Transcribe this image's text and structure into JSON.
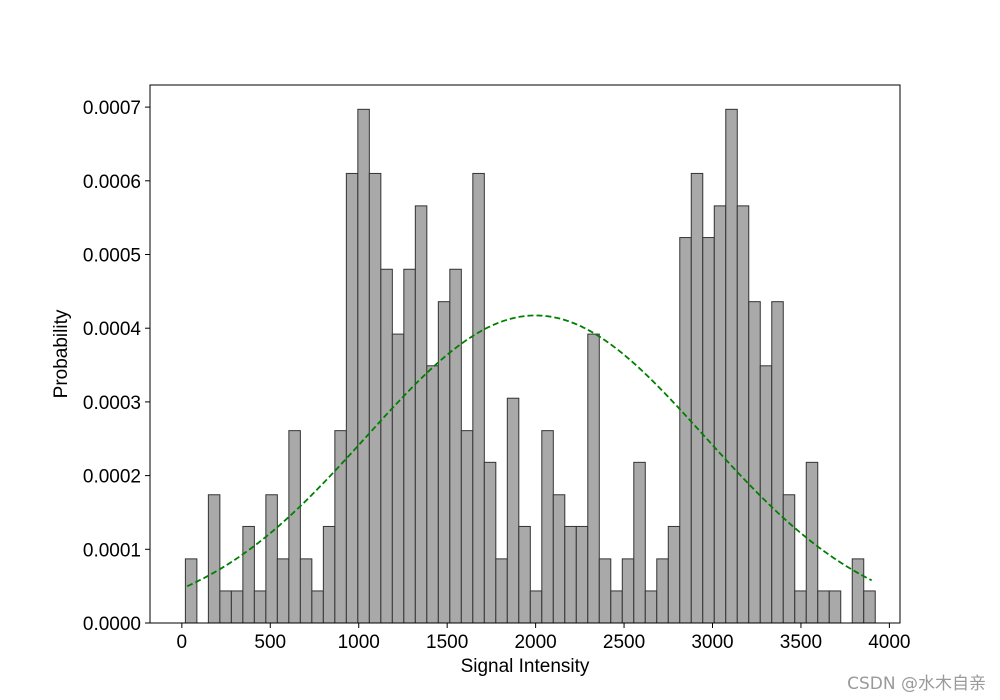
{
  "chart_data": {
    "type": "bar",
    "title": "",
    "xlabel": "Signal Intensity",
    "ylabel": "Probability",
    "xlim": [
      -180,
      4060
    ],
    "ylim": [
      0,
      0.00073
    ],
    "xticks": [
      0,
      500,
      1000,
      1500,
      2000,
      2500,
      3000,
      3500,
      4000
    ],
    "xtick_labels": [
      "0",
      "500",
      "1000",
      "1500",
      "2000",
      "2500",
      "3000",
      "3500",
      "4000"
    ],
    "yticks": [
      0.0,
      0.0001,
      0.0002,
      0.0003,
      0.0004,
      0.0005,
      0.0006,
      0.0007
    ],
    "ytick_labels": [
      "0.0000",
      "0.0001",
      "0.0002",
      "0.0003",
      "0.0004",
      "0.0005",
      "0.0006",
      "0.0007"
    ],
    "grid": false,
    "bin_start": 20,
    "bin_width": 65,
    "values": [
      8.7e-05,
      0,
      0.000174,
      4.35e-05,
      4.35e-05,
      0.000131,
      4.35e-05,
      0.000174,
      8.7e-05,
      0.000261,
      8.7e-05,
      4.35e-05,
      0.000131,
      0.000261,
      0.00061,
      0.000697,
      0.00061,
      0.00048,
      0.000392,
      0.00048,
      0.000566,
      0.000349,
      0.000436,
      0.00048,
      0.000261,
      0.00061,
      0.000218,
      8.7e-05,
      0.000305,
      0.000131,
      4.35e-05,
      0.000261,
      0.000174,
      0.000131,
      0.000131,
      0.000392,
      8.7e-05,
      4.35e-05,
      8.7e-05,
      0.000218,
      4.35e-05,
      8.7e-05,
      0.000131,
      0.000523,
      0.00061,
      0.000523,
      0.000566,
      0.000697,
      0.000566,
      0.000436,
      0.000349,
      0.000436,
      0.000174,
      4.35e-05,
      0.000218,
      4.35e-05,
      4.35e-05,
      0,
      8.7e-05,
      4.35e-05
    ],
    "series": [
      {
        "kind": "histogram",
        "color": "#a9a9a9",
        "edgecolor": "#333333"
      },
      {
        "kind": "normal-fit-curve",
        "mean": 2000,
        "std": 956,
        "x_range": [
          30,
          3900
        ],
        "color": "#008000",
        "linestyle": "dashed"
      }
    ]
  },
  "watermark": "CSDN @水木自亲"
}
